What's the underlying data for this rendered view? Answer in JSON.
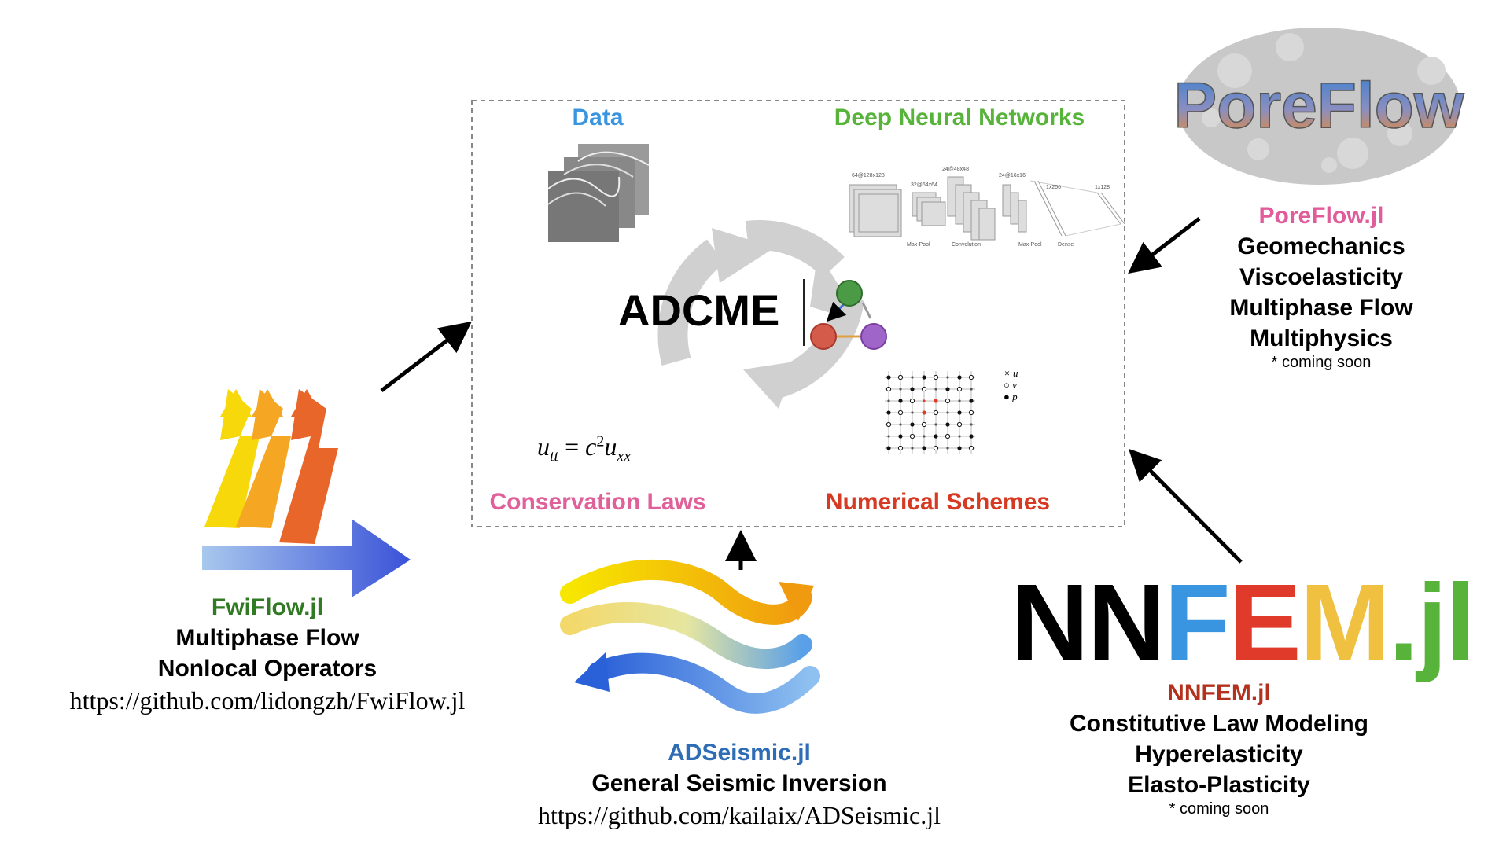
{
  "colors": {
    "data": "#3a95e0",
    "dnn": "#58b33a",
    "conservation": "#e0609a",
    "numerical": "#d63a22",
    "fwiflow": "#2f7a22",
    "poreflow": "#e05c9b",
    "adseismic": "#2e6db5",
    "nnfem": "#b3311d",
    "nnfem_n": "#000000",
    "nnfem_f": "#3a95e0",
    "nnfem_e": "#e03a2a",
    "nnfem_m": "#f0c040",
    "nnfem_jl": "#58b33a"
  },
  "center": {
    "data_label": "Data",
    "dnn_label": "Deep Neural Networks",
    "conservation_label": "Conservation Laws",
    "numerical_label": "Numerical Schemes",
    "title": "ADCME",
    "equation": {
      "u": "u",
      "tt_sub": "tt",
      "eq": "=",
      "c": "c",
      "sq": "2",
      "xx_sub": "xx"
    },
    "dnn_layer_labels": [
      "64@128x128",
      "32@64x64",
      "24@48x48",
      "24@16x16",
      "1x256",
      "1x128"
    ],
    "dnn_caption_labels": [
      "Max-Pool",
      "Convolution",
      "Max-Pool",
      "Dense"
    ],
    "grid_legend": [
      "u",
      "v",
      "p"
    ]
  },
  "fwiflow": {
    "name": "FwiFlow.jl",
    "lines": [
      "Multiphase Flow",
      "Nonlocal Operators"
    ],
    "url": "https://github.com/lidongzh/FwiFlow.jl"
  },
  "poreflow": {
    "logo_text": "PoreFlow",
    "name": "PoreFlow.jl",
    "lines": [
      "Geomechanics",
      "Viscoelasticity",
      "Multiphase Flow",
      "Multiphysics"
    ],
    "note": "* coming soon"
  },
  "adseismic": {
    "name": "ADSeismic.jl",
    "line": "General Seismic Inversion",
    "url": "https://github.com/kailaix/ADSeismic.jl"
  },
  "nnfem": {
    "logo": {
      "n": "NN",
      "f": "F",
      "e": "E",
      "m": "M",
      "jl": ".jl"
    },
    "name": "NNFEM.jl",
    "lines": [
      "Constitutive Law Modeling",
      "Hyperelasticity",
      "Elasto-Plasticity"
    ],
    "note": "* coming soon"
  }
}
